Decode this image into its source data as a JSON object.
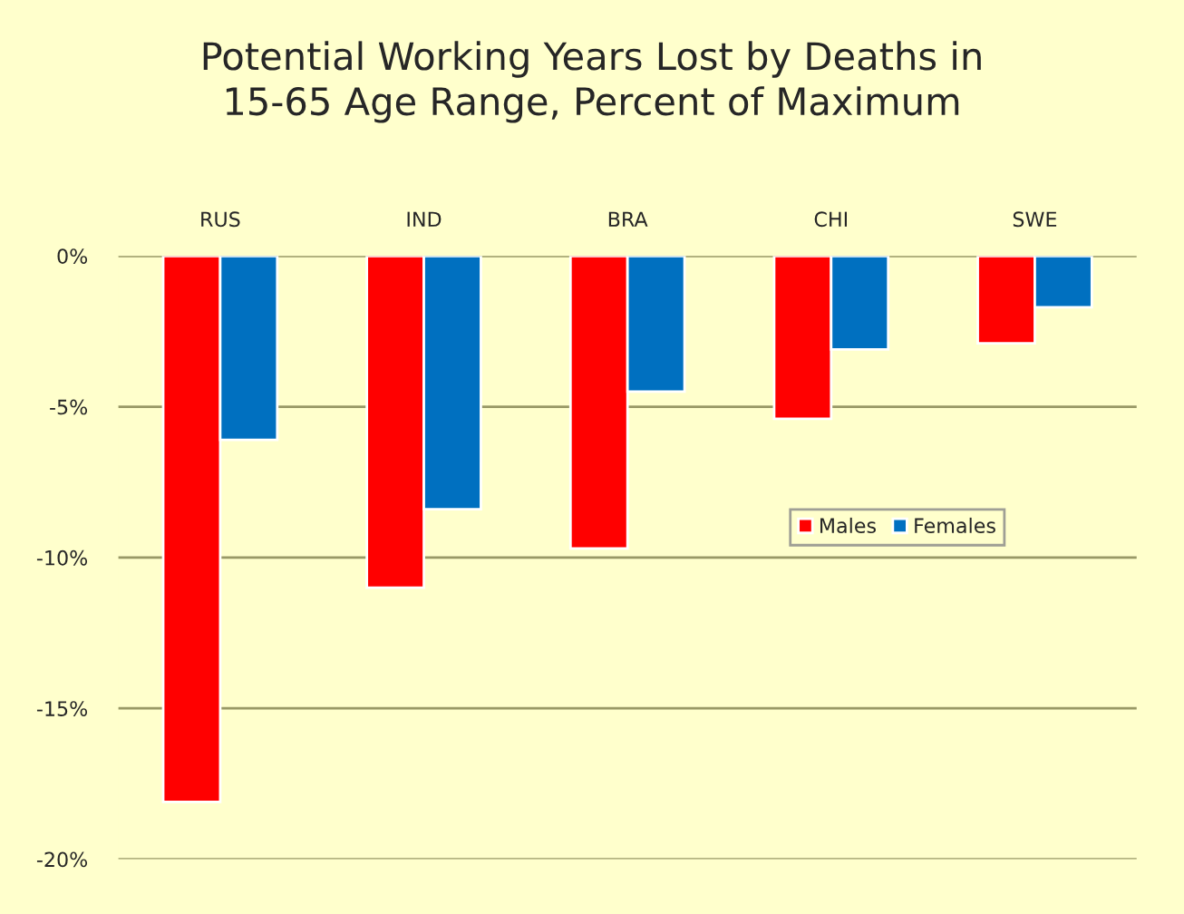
{
  "chart_data": {
    "type": "bar",
    "title": "Potential Working Years Lost by Deaths in\n15-65 Age Range, Percent of Maximum",
    "categories": [
      "RUS",
      "IND",
      "BRA",
      "CHI",
      "SWE"
    ],
    "series": [
      {
        "name": "Males",
        "color": "#ff0000",
        "values": [
          -18.1,
          -11.0,
          -9.7,
          -5.4,
          -2.9
        ]
      },
      {
        "name": "Females",
        "color": "#0070c0",
        "values": [
          -6.1,
          -8.4,
          -4.5,
          -3.1,
          -1.7
        ]
      }
    ],
    "ylim": [
      -20,
      0
    ],
    "yticks": [
      {
        "value": 0,
        "label": "0%"
      },
      {
        "value": -5,
        "label": "-5%"
      },
      {
        "value": -10,
        "label": "-10%"
      },
      {
        "value": -15,
        "label": "-15%"
      },
      {
        "value": -20,
        "label": "-20%"
      }
    ],
    "grid": "y",
    "legend": "center right"
  }
}
